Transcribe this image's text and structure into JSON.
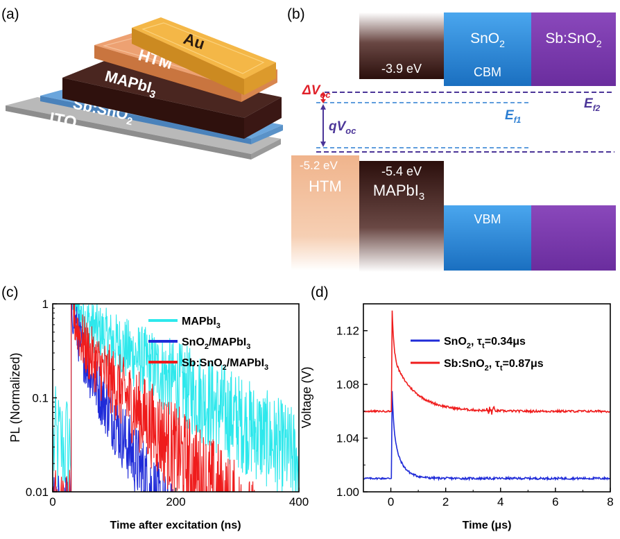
{
  "panel_labels": {
    "a": "(a)",
    "b": "(b)",
    "c": "(c)",
    "d": "(d)"
  },
  "device_layers": [
    {
      "key": "ito",
      "label": "ITO",
      "color": "#a7a7a7"
    },
    {
      "key": "sb",
      "label": "Sb:SnO",
      "sub": "2",
      "color": "#6a9ed4"
    },
    {
      "key": "mapbi",
      "label": "MAPbI",
      "sub": "3",
      "color": "#3b1c18"
    },
    {
      "key": "htm",
      "label": "HTM",
      "color": "#e79a64"
    },
    {
      "key": "au",
      "label": "Au",
      "color": "#f2b441"
    }
  ],
  "band_diagram": {
    "boxes": {
      "mapbi_cb": {
        "text": "-3.9 eV"
      },
      "sno2": {
        "title": "SnO",
        "sub": "2",
        "text": "CBM"
      },
      "sb_sno2": {
        "title": "Sb:SnO",
        "sub": "2"
      },
      "htm": {
        "text": "-5.2 eV",
        "title": "HTM"
      },
      "mapbi_vb": {
        "text": "-5.4 eV",
        "title": "MAPbI",
        "sub": "3"
      },
      "vbm": {
        "text": "VBM"
      }
    },
    "labels": {
      "delta_voc": {
        "pre": "ΔV",
        "sub": "oc"
      },
      "qvoc": {
        "pre": "qV",
        "sub": "oc"
      },
      "ef1": {
        "pre": "E",
        "sub": "f1"
      },
      "ef2": {
        "pre": "E",
        "sub": "f2"
      }
    },
    "colors": {
      "mapbi": "#2b0f0c",
      "sno2": "#2a86d6",
      "sb": "#7a3aab",
      "htm": "#f0b48c",
      "delta": "#e0212a",
      "ef1": "#2a7dd2",
      "ef2": "#4b3598"
    }
  },
  "chart_data": [
    {
      "type": "line",
      "panel": "c",
      "ylabel": "PL (Normalized)",
      "xlabel": "Time after excitation (ns)",
      "xlim": [
        0,
        400
      ],
      "ylim": [
        0.01,
        1
      ],
      "yscale": "log",
      "xticks": [
        0,
        200,
        400
      ],
      "yticks": [
        {
          "v": 0.01,
          "t": "0.01"
        },
        {
          "v": 0.1,
          "t": "0.1"
        },
        {
          "v": 1,
          "t": "1"
        }
      ],
      "legend_position": "top-right",
      "series": [
        {
          "name": "MAPbI",
          "sub": "3",
          "color": "#2ee8ec",
          "t0": 30,
          "tau": 75,
          "noise": 0.55,
          "x": [
            30,
            50,
            100,
            150,
            200,
            250,
            300,
            350,
            400
          ],
          "y": [
            1,
            0.6,
            0.3,
            0.15,
            0.08,
            0.05,
            0.03,
            0.02,
            0.015
          ]
        },
        {
          "name": "SnO",
          "sub": "2",
          "suffix": "/MAPbI",
          "sub2": "3",
          "color": "#1f2bd8",
          "t0": 30,
          "tau": 25,
          "noise": 0.6,
          "x": [
            30,
            40,
            60,
            80,
            100,
            120,
            150
          ],
          "y": [
            1,
            0.3,
            0.1,
            0.05,
            0.03,
            0.02,
            0.01
          ]
        },
        {
          "name": "Sb:SnO",
          "sub": "2",
          "suffix": "/MAPbI",
          "sub2": "3",
          "color": "#ef1c1c",
          "t0": 30,
          "tau": 45,
          "noise": 0.65,
          "x": [
            30,
            40,
            60,
            100,
            150,
            200,
            250,
            300
          ],
          "y": [
            1,
            0.35,
            0.12,
            0.05,
            0.03,
            0.02,
            0.015,
            0.01
          ]
        }
      ]
    },
    {
      "type": "line",
      "panel": "d",
      "ylabel": "Voltage (V)",
      "xlabel": "Time (μs)",
      "xlim": [
        -1,
        8
      ],
      "ylim": [
        1.0,
        1.14
      ],
      "xticks": [
        0,
        2,
        4,
        6,
        8
      ],
      "yticks": [
        {
          "v": 1.0,
          "t": "1.00"
        },
        {
          "v": 1.04,
          "t": "1.04"
        },
        {
          "v": 1.08,
          "t": "1.08"
        },
        {
          "v": 1.12,
          "t": "1.12"
        }
      ],
      "legend_position": "top-right",
      "series": [
        {
          "name": "SnO",
          "sub": "2",
          "tau_label": ", τ",
          "tau_sub": "t",
          "tau_val": "=0.34μs",
          "color": "#1f2bd8",
          "baseline": 1.01,
          "peak": 1.075,
          "tau": 0.34,
          "x": [
            -1,
            0,
            0.05,
            0.5,
            1,
            2,
            8
          ],
          "y": [
            1.01,
            1.01,
            1.075,
            1.03,
            1.015,
            1.01,
            1.01
          ]
        },
        {
          "name": "Sb:SnO",
          "sub": "2",
          "tau_label": ", τ",
          "tau_sub": "t",
          "tau_val": "=0.87μs",
          "color": "#ef1c1c",
          "baseline": 1.06,
          "peak": 1.135,
          "tau": 0.87,
          "x": [
            -1,
            0,
            0.05,
            0.5,
            1,
            2,
            8
          ],
          "y": [
            1.06,
            1.06,
            1.135,
            1.09,
            1.078,
            1.064,
            1.06
          ]
        }
      ]
    }
  ]
}
